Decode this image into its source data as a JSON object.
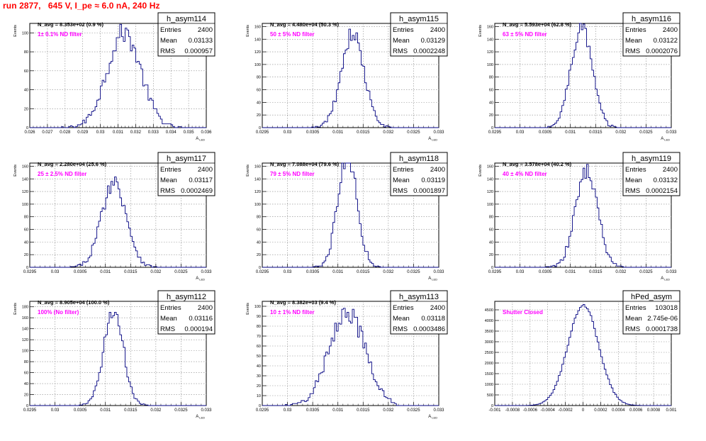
{
  "title": "run 2877,   645 V, I_pe ≈ 6.0 nA, 240 Hz",
  "chart_data": [
    {
      "type": "histogram",
      "name": "h_asym114",
      "stats": {
        "entries": "2400",
        "mean": "0.03133",
        "rms": "0.000957"
      },
      "navg": "N_avg = 8.353e+02 (0.9 %)",
      "filter": "1± 0.1% ND filter",
      "xlim": [
        0.026,
        0.036
      ],
      "ticks": [
        "0.026",
        "0.027",
        "0.028",
        "0.029",
        "0.03",
        "0.031",
        "0.032",
        "0.033",
        "0.034",
        "0.035",
        "0.036"
      ],
      "ylim": [
        0,
        110
      ],
      "yticks": [
        0,
        20,
        40,
        60,
        80,
        100
      ],
      "ylabel": "Events",
      "xlabel": "A_LED",
      "mean": 0.03133,
      "rms": 0.000957,
      "entries": 2400,
      "nbins": 100
    },
    {
      "type": "histogram",
      "name": "h_asym115",
      "stats": {
        "entries": "2400",
        "mean": "0.03129",
        "rms": "0.0002248"
      },
      "navg": "N_avg = 4.480e+04 (50.3 %)",
      "filter": "50 ± 5% ND filter",
      "xlim": [
        0.0295,
        0.033
      ],
      "ticks": [
        "0.0295",
        "0.03",
        "0.0305",
        "0.031",
        "0.0315",
        "0.032",
        "0.0325",
        "0.033"
      ],
      "ylim": [
        0,
        165
      ],
      "yticks": [
        0,
        20,
        40,
        60,
        80,
        100,
        120,
        140,
        160
      ],
      "ylabel": "Events",
      "xlabel": "A_LED",
      "mean": 0.03129,
      "rms": 0.0002248,
      "entries": 2400,
      "nbins": 100
    },
    {
      "type": "histogram",
      "name": "h_asym116",
      "stats": {
        "entries": "2400",
        "mean": "0.03122",
        "rms": "0.0002076"
      },
      "navg": "N_avg = 5.593e+04 (62.8 %)",
      "filter": "63 ± 5% ND filter",
      "xlim": [
        0.0295,
        0.033
      ],
      "ticks": [
        "0.0295",
        "0.03",
        "0.0305",
        "0.031",
        "0.0315",
        "0.032",
        "0.0325",
        "0.033"
      ],
      "ylim": [
        0,
        165
      ],
      "yticks": [
        0,
        20,
        40,
        60,
        80,
        100,
        120,
        140,
        160
      ],
      "ylabel": "Events",
      "xlabel": "A_LED",
      "mean": 0.03122,
      "rms": 0.0002076,
      "entries": 2400,
      "nbins": 100
    },
    {
      "type": "histogram",
      "name": "h_asym117",
      "stats": {
        "entries": "2400",
        "mean": "0.03117",
        "rms": "0.0002469"
      },
      "navg": "N_avg = 2.280e+04 (25.6 %)",
      "filter": "25 ± 2.5% ND filter",
      "xlim": [
        0.0295,
        0.033
      ],
      "ticks": [
        "0.0295",
        "0.03",
        "0.0305",
        "0.031",
        "0.0315",
        "0.032",
        "0.0325",
        "0.033"
      ],
      "ylim": [
        0,
        165
      ],
      "yticks": [
        0,
        20,
        40,
        60,
        80,
        100,
        120,
        140,
        160
      ],
      "ylabel": "Events",
      "xlabel": "A_LED",
      "mean": 0.03117,
      "rms": 0.0002469,
      "entries": 2400,
      "nbins": 100
    },
    {
      "type": "histogram",
      "name": "h_asym118",
      "stats": {
        "entries": "2400",
        "mean": "0.03119",
        "rms": "0.0001897"
      },
      "navg": "N_avg = 7.088e+04 (79.6 %)",
      "filter": "79 ± 5% ND filter",
      "xlim": [
        0.0295,
        0.033
      ],
      "ticks": [
        "0.0295",
        "0.03",
        "0.0305",
        "0.031",
        "0.0315",
        "0.032",
        "0.0325",
        "0.033"
      ],
      "ylim": [
        0,
        165
      ],
      "yticks": [
        0,
        20,
        40,
        60,
        80,
        100,
        120,
        140,
        160
      ],
      "ylabel": "Events",
      "xlabel": "A_LED",
      "mean": 0.03119,
      "rms": 0.0001897,
      "entries": 2400,
      "nbins": 100
    },
    {
      "type": "histogram",
      "name": "h_asym119",
      "stats": {
        "entries": "2400",
        "mean": "0.03132",
        "rms": "0.0002154"
      },
      "navg": "N_avg = 3.578e+04 (40.2 %)",
      "filter": "40 ± 4% ND filter",
      "xlim": [
        0.0295,
        0.033
      ],
      "ticks": [
        "0.0295",
        "0.03",
        "0.0305",
        "0.031",
        "0.0315",
        "0.032",
        "0.0325",
        "0.033"
      ],
      "ylim": [
        0,
        165
      ],
      "yticks": [
        0,
        20,
        40,
        60,
        80,
        100,
        120,
        140,
        160
      ],
      "ylabel": "Events",
      "xlabel": "A_LED",
      "mean": 0.03132,
      "rms": 0.0002154,
      "entries": 2400,
      "nbins": 100
    },
    {
      "type": "histogram",
      "name": "h_asym112",
      "stats": {
        "entries": "2400",
        "mean": "0.03116",
        "rms": "0.000194"
      },
      "navg": "N_avg = 8.905e+04 (100.0 %)",
      "filter": "100% (No filter)",
      "xlim": [
        0.0295,
        0.033
      ],
      "ticks": [
        "0.0295",
        "0.03",
        "0.0305",
        "0.031",
        "0.0315",
        "0.032",
        "0.0325",
        "0.033"
      ],
      "ylim": [
        0,
        190
      ],
      "yticks": [
        0,
        20,
        40,
        60,
        80,
        100,
        120,
        140,
        160,
        180
      ],
      "ylabel": "Events",
      "xlabel": "A_LED",
      "mean": 0.03116,
      "rms": 0.000194,
      "entries": 2400,
      "nbins": 100
    },
    {
      "type": "histogram",
      "name": "h_asym113",
      "stats": {
        "entries": "2400",
        "mean": "0.03118",
        "rms": "0.0003486"
      },
      "navg": "N_avg = 8.382e+03 (9.4 %)",
      "filter": "10 ± 1% ND filter",
      "xlim": [
        0.0295,
        0.033
      ],
      "ticks": [
        "0.0295",
        "0.03",
        "0.0305",
        "0.031",
        "0.0315",
        "0.032",
        "0.0325",
        "0.033"
      ],
      "ylim": [
        0,
        105
      ],
      "yticks": [
        0,
        10,
        20,
        30,
        40,
        50,
        60,
        70,
        80,
        90,
        100
      ],
      "ylabel": "Events",
      "xlabel": "A_LED",
      "mean": 0.03118,
      "rms": 0.0003486,
      "entries": 2400,
      "nbins": 100
    },
    {
      "type": "histogram",
      "name": "hPed_asym",
      "stats": {
        "entries": "103018",
        "mean": "2.745e-06",
        "rms": "0.0001738"
      },
      "navg": "",
      "filter": "Shutter Closed",
      "xlim": [
        -0.001,
        0.001
      ],
      "ticks": [
        "-0.001",
        "-0.0008",
        "-0.0006",
        "-0.0004",
        "-0.0002",
        "0",
        "0.0002",
        "0.0004",
        "0.0006",
        "0.0008",
        "0.001"
      ],
      "ylim": [
        0,
        4900
      ],
      "yticks": [
        0,
        500,
        1000,
        1500,
        2000,
        2500,
        3000,
        3500,
        4000,
        4500
      ],
      "ylabel": "",
      "xlabel": "",
      "mean": 2.745e-06,
      "rms": 0.0001738,
      "entries": 103018,
      "nbins": 100
    }
  ]
}
